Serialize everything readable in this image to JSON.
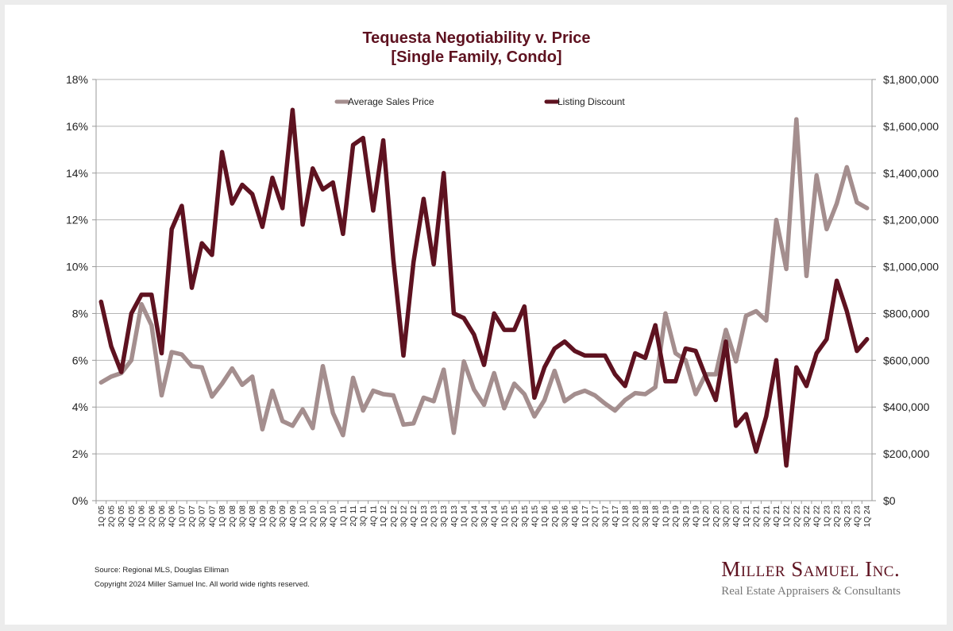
{
  "chart_data": {
    "type": "line",
    "title": "Tequesta Negotiability v. Price",
    "subtitle": "[Single Family, Condo]",
    "xlabel": "",
    "ylabel_left": "",
    "ylabel_right": "",
    "ylim_left": [
      0,
      18
    ],
    "ylim_right": [
      0,
      1800000
    ],
    "left_ticks": [
      "0%",
      "2%",
      "4%",
      "6%",
      "8%",
      "10%",
      "12%",
      "14%",
      "16%",
      "18%"
    ],
    "right_ticks": [
      "$0",
      "$200,000",
      "$400,000",
      "$600,000",
      "$800,000",
      "$1,000,000",
      "$1,200,000",
      "$1,400,000",
      "$1,600,000",
      "$1,800,000"
    ],
    "grid": true,
    "legend_position": "top",
    "categories": [
      "1Q 05",
      "2Q 05",
      "3Q 05",
      "4Q 05",
      "1Q 06",
      "2Q 06",
      "3Q 06",
      "4Q 06",
      "1Q 07",
      "2Q 07",
      "3Q 07",
      "4Q 07",
      "1Q 08",
      "2Q 08",
      "3Q 08",
      "4Q 08",
      "1Q 09",
      "2Q 09",
      "3Q 09",
      "4Q 09",
      "1Q 10",
      "2Q 10",
      "3Q 10",
      "4Q 10",
      "1Q 11",
      "2Q 11",
      "3Q 11",
      "4Q 11",
      "1Q 12",
      "2Q 12",
      "3Q 12",
      "4Q 12",
      "1Q 13",
      "2Q 13",
      "3Q 13",
      "4Q 13",
      "1Q 14",
      "2Q 14",
      "3Q 14",
      "4Q 14",
      "1Q 15",
      "2Q 15",
      "3Q 15",
      "4Q 15",
      "1Q 16",
      "2Q 16",
      "3Q 16",
      "4Q 16",
      "1Q 17",
      "2Q 17",
      "3Q 17",
      "4Q 17",
      "1Q 18",
      "2Q 18",
      "3Q 18",
      "4Q 18",
      "1Q 19",
      "2Q 19",
      "3Q 19",
      "4Q 19",
      "1Q 20",
      "2Q 20",
      "3Q 20",
      "4Q 20",
      "1Q 21",
      "2Q 21",
      "3Q 21",
      "4Q 21",
      "1Q 22",
      "2Q 22",
      "3Q 22",
      "4Q 22",
      "1Q 23",
      "2Q 23",
      "3Q 23",
      "4Q 23",
      "1Q 24"
    ],
    "series": [
      {
        "name": "Average Sales Price",
        "axis": "right",
        "color": "#a48e8e",
        "values": [
          505000,
          530000,
          545000,
          600000,
          840000,
          750000,
          450000,
          635000,
          625000,
          575000,
          570000,
          445000,
          500000,
          565000,
          495000,
          530000,
          305000,
          470000,
          340000,
          320000,
          390000,
          310000,
          575000,
          375000,
          280000,
          525000,
          385000,
          470000,
          455000,
          450000,
          325000,
          330000,
          440000,
          425000,
          560000,
          290000,
          595000,
          475000,
          410000,
          545000,
          395000,
          500000,
          455000,
          360000,
          430000,
          555000,
          425000,
          455000,
          470000,
          450000,
          415000,
          385000,
          430000,
          460000,
          455000,
          485000,
          800000,
          630000,
          600000,
          455000,
          540000,
          540000,
          730000,
          595000,
          790000,
          810000,
          770000,
          1200000,
          990000,
          1630000,
          960000,
          1390000,
          1160000,
          1270000,
          1425000,
          1275000,
          1250000
        ]
      },
      {
        "name": "Listing Discount",
        "axis": "left",
        "color": "#5e1220",
        "values": [
          8.5,
          6.6,
          5.5,
          8.0,
          8.8,
          8.8,
          6.3,
          11.6,
          12.6,
          9.1,
          11.0,
          10.5,
          14.9,
          12.7,
          13.5,
          13.1,
          11.7,
          13.8,
          12.5,
          16.7,
          11.8,
          14.2,
          13.3,
          13.6,
          11.4,
          15.2,
          15.5,
          12.4,
          15.4,
          10.3,
          6.2,
          10.2,
          12.9,
          10.1,
          14.0,
          8.0,
          7.8,
          7.1,
          5.8,
          8.0,
          7.3,
          7.3,
          8.3,
          4.4,
          5.7,
          6.5,
          6.8,
          6.4,
          6.2,
          6.2,
          6.2,
          5.4,
          4.9,
          6.3,
          6.1,
          7.5,
          5.1,
          5.1,
          6.5,
          6.4,
          5.3,
          4.3,
          6.8,
          3.2,
          3.7,
          2.1,
          3.6,
          6.0,
          1.5,
          5.7,
          4.9,
          6.3,
          6.9,
          9.4,
          8.1,
          6.4,
          6.9
        ]
      }
    ]
  },
  "footer": {
    "source": "Source: Regional MLS, Douglas Elliman",
    "copyright": "Copyright 2024 Miller Samuel Inc.  All world wide rights reserved."
  },
  "brand": {
    "name": "Miller Samuel Inc.",
    "tagline": "Real Estate Appraisers & Consultants"
  }
}
